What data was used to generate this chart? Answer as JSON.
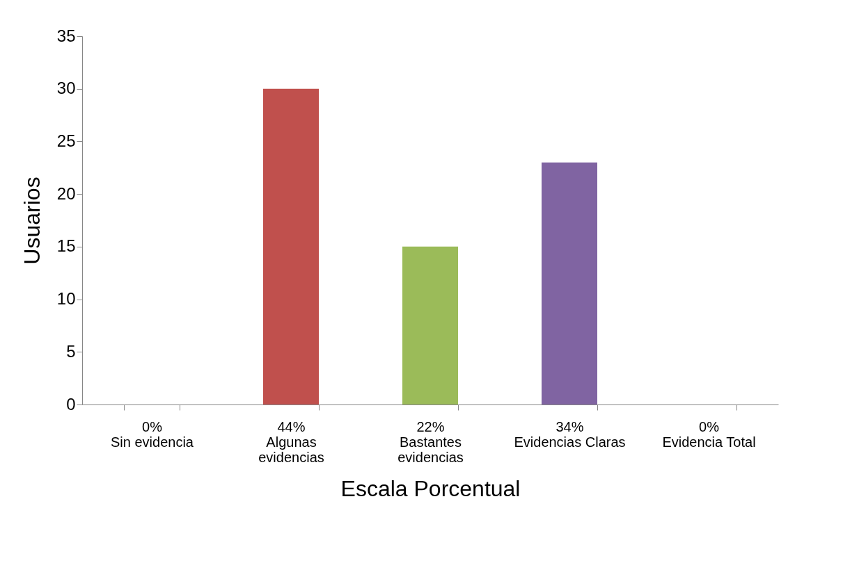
{
  "chart_data": {
    "type": "bar",
    "xlabel": "Escala Porcentual",
    "ylabel": "Usuarios",
    "categories": [
      "0%\nSin evidencia",
      "44%\nAlgunas\nevidencias",
      "22%\nBastantes\nevidencias",
      "34%\nEvidencias Claras",
      "0%\nEvidencia Total"
    ],
    "values": [
      0,
      30,
      15,
      23,
      0
    ],
    "colors": [
      "#4f81bd",
      "#c0504d",
      "#9bbb59",
      "#8064a2",
      "#4bacc6"
    ],
    "ylim": [
      0,
      35
    ],
    "yticks": [
      0,
      5,
      10,
      15,
      20,
      25,
      30,
      35
    ],
    "grid": false,
    "legend": false
  }
}
